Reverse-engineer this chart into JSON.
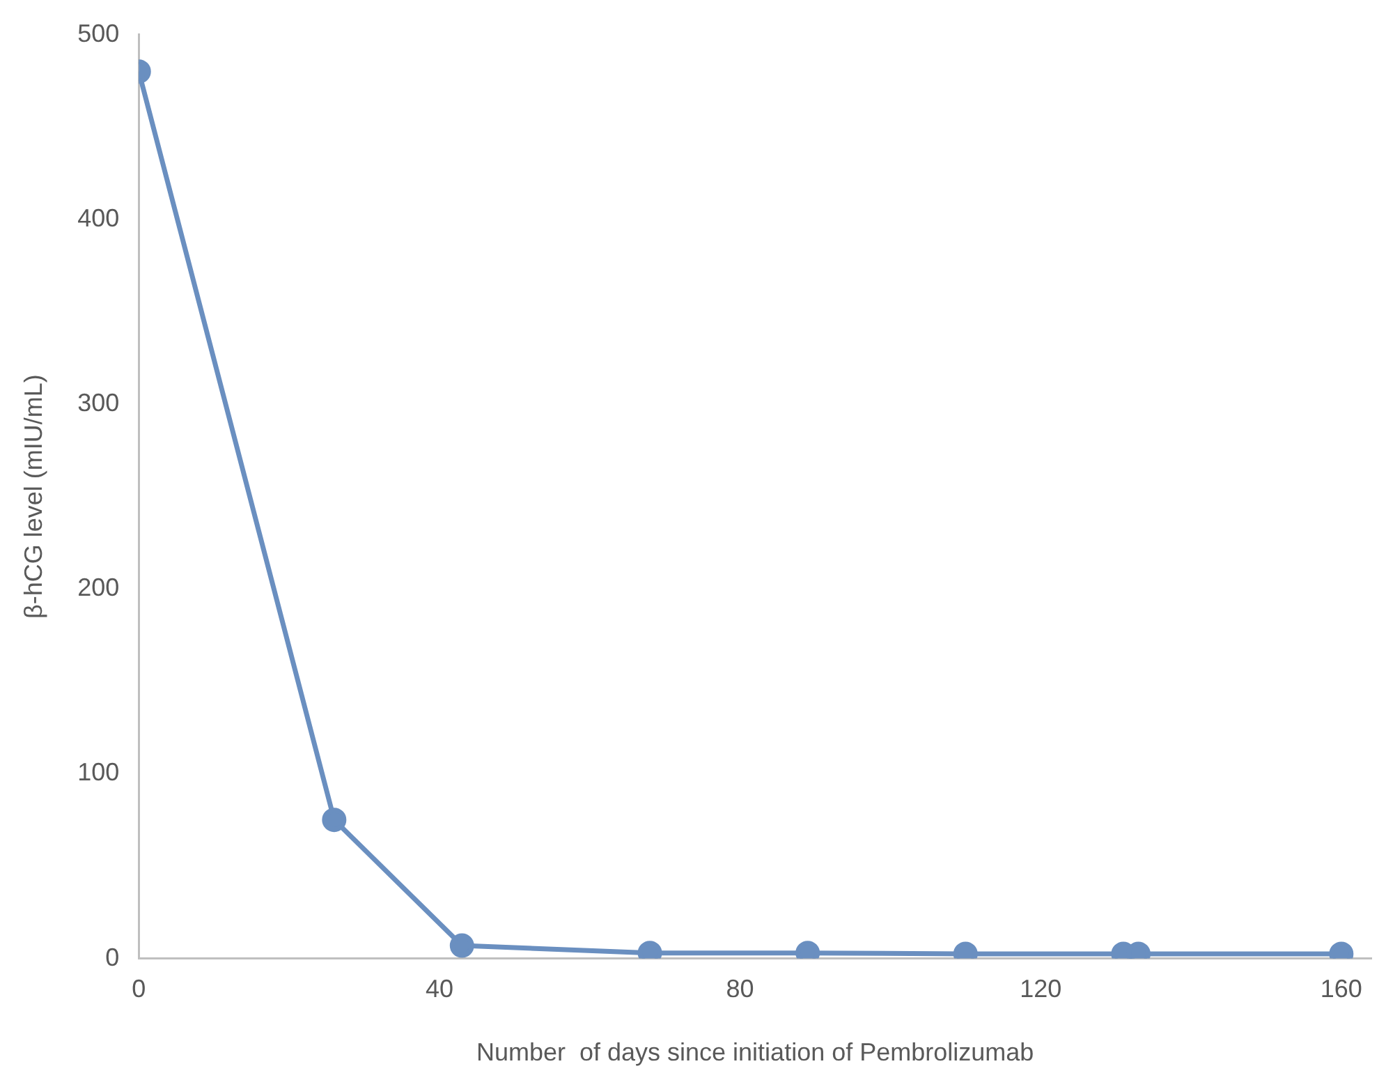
{
  "chart_data": {
    "type": "line",
    "xlabel": "Number  of days since initiation of Pembrolizumab",
    "ylabel": "β-hCG level (mIU/mL)",
    "x": [
      0,
      26,
      43,
      68,
      89,
      110,
      131,
      133,
      160
    ],
    "series": [
      {
        "color": "#6a8fc0",
        "values": [
          480,
          75,
          7,
          3,
          3,
          2.5,
          2.5,
          2.5,
          2.5
        ]
      }
    ],
    "xlim": [
      0,
      164
    ],
    "xticks": [
      0,
      40,
      80,
      120,
      160
    ],
    "ylim": [
      0,
      500
    ],
    "yticks": [
      0,
      100,
      200,
      300,
      400,
      500
    ],
    "grid": false,
    "legend": false,
    "marker": "circle",
    "line_style": "solid"
  }
}
